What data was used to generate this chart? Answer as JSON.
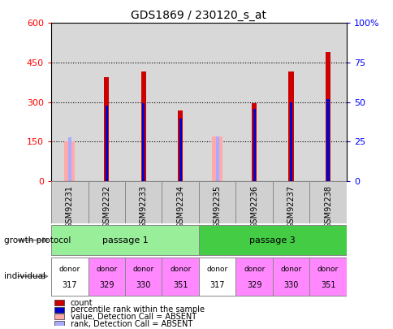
{
  "title": "GDS1869 / 230120_s_at",
  "samples": [
    "GSM92231",
    "GSM92232",
    "GSM92233",
    "GSM92234",
    "GSM92235",
    "GSM92236",
    "GSM92237",
    "GSM92238"
  ],
  "count_values": [
    152,
    395,
    415,
    268,
    168,
    295,
    415,
    490
  ],
  "percentile_values": [
    null,
    287,
    295,
    238,
    null,
    275,
    300,
    310
  ],
  "absent_value": [
    152,
    null,
    null,
    null,
    168,
    null,
    null,
    null
  ],
  "absent_rank": [
    165,
    null,
    null,
    null,
    168,
    null,
    null,
    null
  ],
  "count_color": "#cc0000",
  "percentile_color": "#0000cc",
  "absent_value_color": "#ffaaaa",
  "absent_rank_color": "#aaaaff",
  "ylim_left": [
    0,
    600
  ],
  "ylim_right": [
    0,
    100
  ],
  "yticks_left": [
    0,
    150,
    300,
    450,
    600
  ],
  "yticks_right": [
    0,
    25,
    50,
    75,
    100
  ],
  "passage1_color": "#99ee99",
  "passage3_color": "#44cc44",
  "donor_colors": [
    "#ffffff",
    "#ff88ff",
    "#ff88ff",
    "#ff88ff",
    "#ffffff",
    "#ff88ff",
    "#ff88ff",
    "#ff88ff"
  ],
  "donors": [
    "317",
    "329",
    "330",
    "351",
    "317",
    "329",
    "330",
    "351"
  ],
  "growth_protocol_label": "growth protocol",
  "individual_label": "individual",
  "passage1_label": "passage 1",
  "passage3_label": "passage 3",
  "legend_items": [
    {
      "color": "#cc0000",
      "label": "count"
    },
    {
      "color": "#0000cc",
      "label": "percentile rank within the sample"
    },
    {
      "color": "#ffaaaa",
      "label": "value, Detection Call = ABSENT"
    },
    {
      "color": "#aaaaff",
      "label": "rank, Detection Call = ABSENT"
    }
  ]
}
